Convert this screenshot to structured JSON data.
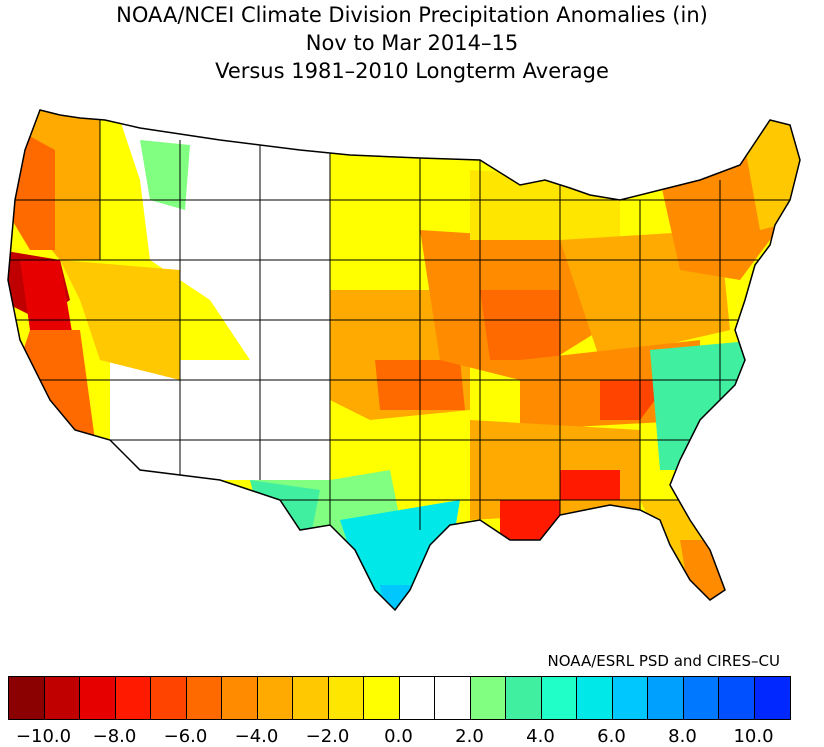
{
  "title": {
    "line1": "NOAA/NCEI Climate Division Precipitation Anomalies (in)",
    "line2": "Nov to Mar 2014–15",
    "line3": "Versus 1981–2010 Longterm Average"
  },
  "credit": "NOAA/ESRL PSD and CIRES–CU",
  "legend": {
    "colors": [
      "#8b0000",
      "#c00000",
      "#e60000",
      "#ff1a00",
      "#ff4400",
      "#ff6a00",
      "#ff8c00",
      "#ffaa00",
      "#ffc800",
      "#ffe600",
      "#ffff00",
      "#ffffff",
      "#ffffff",
      "#80ff80",
      "#40f0a0",
      "#20ffc8",
      "#00e8e8",
      "#00c8ff",
      "#00a0ff",
      "#0078ff",
      "#0050ff",
      "#0028ff"
    ],
    "tick_labels": [
      "−10.0",
      "−8.0",
      "−6.0",
      "−4.0",
      "−2.0",
      "0.0",
      "2.0",
      "4.0",
      "6.0",
      "8.0",
      "10.0"
    ]
  },
  "regions": [
    {
      "name": "pacific-northwest-coast",
      "anomaly": -5.5,
      "color": "#ff6a00"
    },
    {
      "name": "northern-california-coast",
      "anomaly": -9.0,
      "color": "#c00000"
    },
    {
      "name": "sierra-nevada",
      "anomaly": -7.5,
      "color": "#e60000"
    },
    {
      "name": "central-california",
      "anomaly": -5.0,
      "color": "#ff6a00"
    },
    {
      "name": "great-basin",
      "anomaly": -2.5,
      "color": "#ffe600"
    },
    {
      "name": "northern-rockies",
      "anomaly": -0.5,
      "color": "#ffffff"
    },
    {
      "name": "idaho-panhandle",
      "anomaly": 1.5,
      "color": "#80ff80"
    },
    {
      "name": "northern-plains",
      "anomaly": -1.5,
      "color": "#ffff00"
    },
    {
      "name": "central-plains",
      "anomaly": -3.5,
      "color": "#ffaa00"
    },
    {
      "name": "midwest",
      "anomaly": -5.0,
      "color": "#ff8c00"
    },
    {
      "name": "ohio-valley",
      "anomaly": -4.0,
      "color": "#ffaa00"
    },
    {
      "name": "tennessee-valley",
      "anomaly": -6.0,
      "color": "#ff6a00"
    },
    {
      "name": "gulf-coast-louisiana",
      "anomaly": -7.5,
      "color": "#ff1a00"
    },
    {
      "name": "texas-west",
      "anomaly": 2.5,
      "color": "#40f0a0"
    },
    {
      "name": "texas-south",
      "anomaly": 4.5,
      "color": "#00e8e8"
    },
    {
      "name": "southeast-atlantic",
      "anomaly": 2.0,
      "color": "#40f0a0"
    },
    {
      "name": "northeast",
      "anomaly": -4.0,
      "color": "#ffaa00"
    },
    {
      "name": "new-england",
      "anomaly": -3.0,
      "color": "#ffc800"
    },
    {
      "name": "florida",
      "anomaly": -4.5,
      "color": "#ff8c00"
    },
    {
      "name": "southwest",
      "anomaly": -0.5,
      "color": "#ffffff"
    },
    {
      "name": "upper-great-lakes",
      "anomaly": -2.0,
      "color": "#ffe600"
    }
  ]
}
